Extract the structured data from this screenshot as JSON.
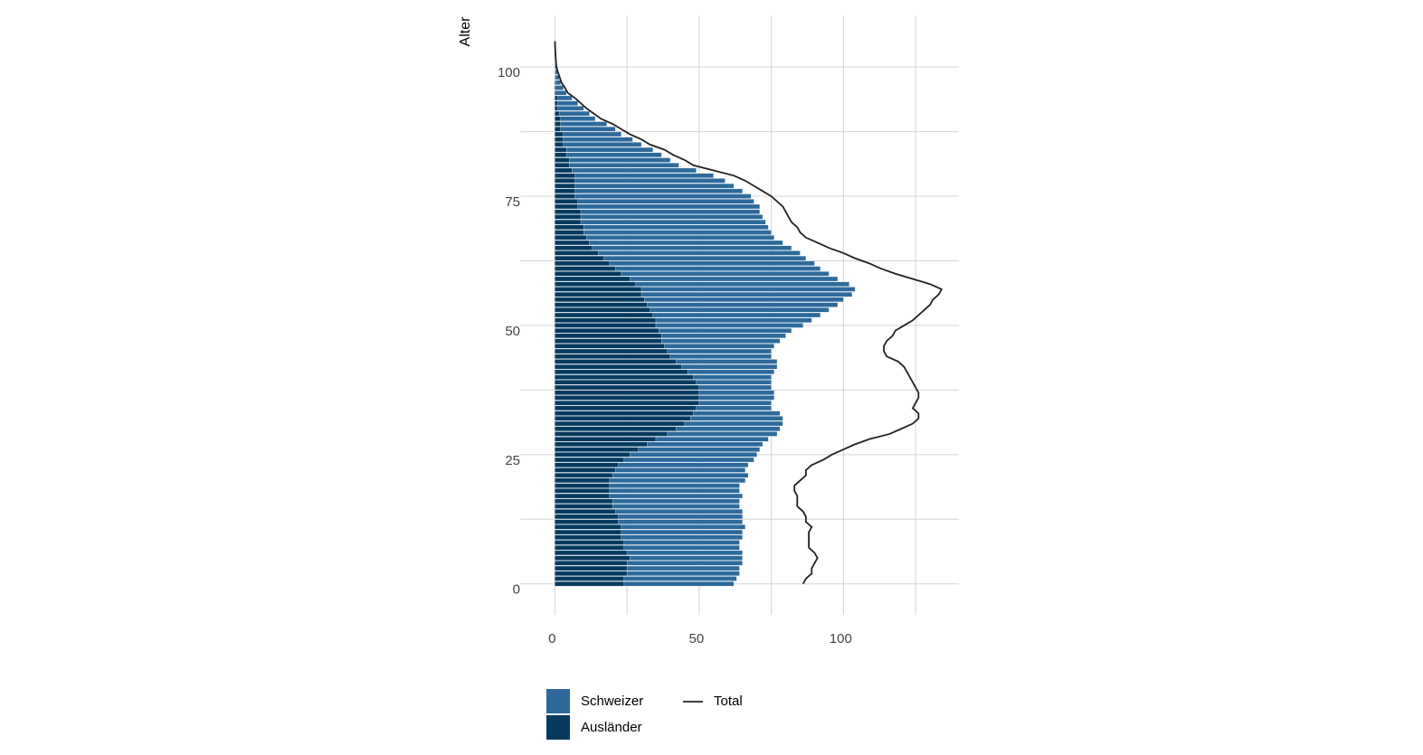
{
  "chart_data": {
    "type": "bar",
    "orientation": "horizontal",
    "ylabel": "Alter",
    "y": [
      0,
      1,
      2,
      3,
      4,
      5,
      6,
      7,
      8,
      9,
      10,
      11,
      12,
      13,
      14,
      15,
      16,
      17,
      18,
      19,
      20,
      21,
      22,
      23,
      24,
      25,
      26,
      27,
      28,
      29,
      30,
      31,
      32,
      33,
      34,
      35,
      36,
      37,
      38,
      39,
      40,
      41,
      42,
      43,
      44,
      45,
      46,
      47,
      48,
      49,
      50,
      51,
      52,
      53,
      54,
      55,
      56,
      57,
      58,
      59,
      60,
      61,
      62,
      63,
      64,
      65,
      66,
      67,
      68,
      69,
      70,
      71,
      72,
      73,
      74,
      75,
      76,
      77,
      78,
      79,
      80,
      81,
      82,
      83,
      84,
      85,
      86,
      87,
      88,
      89,
      90,
      91,
      92,
      93,
      94,
      95,
      96,
      97,
      98,
      99,
      100,
      101,
      102,
      103,
      104,
      105
    ],
    "series": [
      {
        "name": "Schweizer",
        "color": "#2d6a9b",
        "values": [
          62,
          63,
          64,
          64,
          65,
          65,
          65,
          64,
          64,
          65,
          65,
          66,
          65,
          65,
          65,
          64,
          64,
          65,
          64,
          64,
          66,
          67,
          66,
          67,
          69,
          70,
          71,
          72,
          74,
          77,
          78,
          79,
          79,
          78,
          75,
          75,
          76,
          76,
          75,
          75,
          75,
          76,
          77,
          77,
          75,
          75,
          76,
          78,
          80,
          82,
          86,
          89,
          92,
          95,
          98,
          100,
          103,
          104,
          102,
          98,
          95,
          92,
          90,
          87,
          85,
          82,
          79,
          76,
          75,
          74,
          73,
          72,
          71,
          71,
          69,
          68,
          65,
          62,
          59,
          55,
          49,
          43,
          40,
          37,
          34,
          30,
          27,
          23,
          21,
          18,
          14,
          12,
          10,
          8,
          6,
          4,
          3,
          2,
          1.5,
          1,
          0.5,
          null,
          null,
          null,
          null,
          null
        ]
      },
      {
        "name": "Ausländer",
        "color": "#053a5e",
        "values": [
          24,
          24,
          25,
          25,
          25,
          26,
          25,
          24,
          24,
          23,
          23,
          23,
          22,
          22,
          21,
          20,
          20,
          19,
          19,
          19,
          19,
          20,
          21,
          22,
          24,
          26,
          29,
          32,
          35,
          39,
          42,
          45,
          47,
          48,
          49,
          50,
          50,
          50,
          50,
          49,
          48,
          46,
          44,
          42,
          40,
          39,
          38,
          37,
          37,
          36,
          35,
          35,
          34,
          33,
          32,
          31,
          30,
          30,
          28,
          26,
          23,
          21,
          19,
          17,
          15,
          13,
          12,
          11,
          10,
          10,
          9,
          9,
          9,
          8,
          8,
          7,
          7,
          7,
          7,
          7,
          6,
          5,
          5,
          4,
          4,
          3,
          3,
          3,
          2,
          2,
          2,
          1.5,
          1,
          1,
          1,
          0.5,
          0.5,
          0.3,
          0.2,
          0.1,
          0.1,
          null,
          null,
          null,
          null,
          null
        ]
      },
      {
        "name": "Total",
        "type": "line",
        "color": "#222222",
        "values": [
          86,
          87,
          89,
          89,
          90,
          91,
          90,
          88,
          88,
          88,
          88,
          89,
          87,
          87,
          86,
          84,
          84,
          84,
          83,
          83,
          85,
          87,
          87,
          89,
          93,
          96,
          100,
          104,
          109,
          116,
          120,
          124,
          126,
          126,
          124,
          125,
          126,
          126,
          125,
          124,
          123,
          122,
          121,
          119,
          115,
          114,
          114,
          115,
          117,
          118,
          121,
          124,
          126,
          128,
          130,
          131,
          133,
          134,
          130,
          124,
          118,
          113,
          109,
          104,
          100,
          95,
          91,
          87,
          85,
          84,
          82,
          81,
          80,
          79,
          77,
          75,
          72,
          69,
          66,
          62,
          55,
          48,
          45,
          41,
          38,
          33,
          30,
          26,
          23,
          20,
          16,
          13.5,
          11,
          9,
          7,
          4.5,
          3.5,
          2.3,
          1.7,
          1.1,
          0.6,
          0.4,
          0.3,
          0.2,
          0.1,
          0.05
        ]
      }
    ],
    "xlim": [
      -12,
      140
    ],
    "ylim": [
      -6,
      110
    ],
    "xticks": [
      0,
      50,
      100
    ],
    "yticks": [
      0,
      25,
      50,
      75,
      100
    ],
    "xminorticks": [
      25,
      75,
      125
    ],
    "yminorticks": [
      12.5,
      37.5,
      62.5,
      87.5
    ],
    "grid": true,
    "legend": "bottom"
  }
}
